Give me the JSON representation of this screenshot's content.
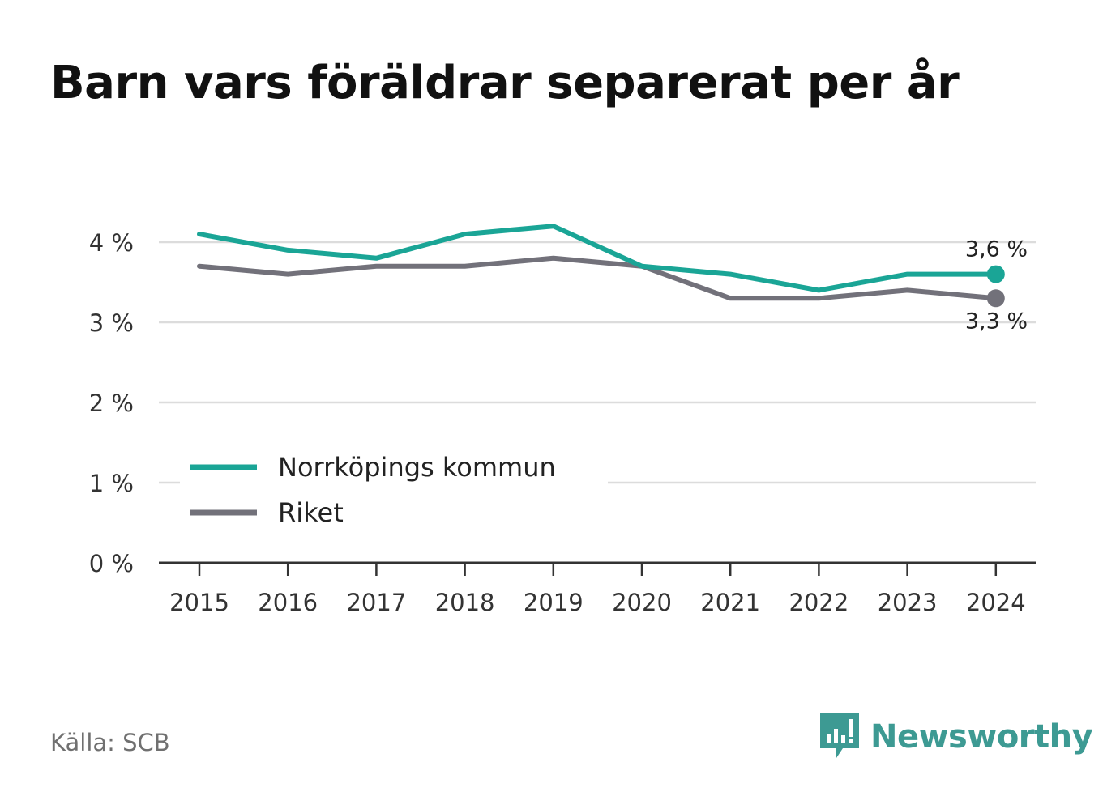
{
  "title": "Barn vars föräldrar separerat per år",
  "source": "Källa: SCB",
  "brand": {
    "name": "Newsworthy",
    "icon": "bar-chart-speech-bubble-icon",
    "color": "#3d9a93"
  },
  "chart_data": {
    "type": "line",
    "x": [
      "2015",
      "2016",
      "2017",
      "2018",
      "2019",
      "2020",
      "2021",
      "2022",
      "2023",
      "2024"
    ],
    "series": [
      {
        "name": "Norrköpings kommun",
        "color": "#1aa596",
        "values": [
          4.1,
          3.9,
          3.8,
          4.1,
          4.2,
          3.7,
          3.6,
          3.4,
          3.6,
          3.6
        ],
        "end_label": "3,6 %"
      },
      {
        "name": "Riket",
        "color": "#72717a",
        "values": [
          3.7,
          3.6,
          3.7,
          3.7,
          3.8,
          3.7,
          3.3,
          3.3,
          3.4,
          3.3
        ],
        "end_label": "3,3 %"
      }
    ],
    "y_ticks": [
      0,
      1,
      2,
      3,
      4
    ],
    "y_tick_labels": [
      "0 %",
      "1 %",
      "2 %",
      "3 %",
      "4 %"
    ],
    "ylim": [
      0,
      4.4
    ],
    "grid": true,
    "legend_position": "bottom-left"
  }
}
